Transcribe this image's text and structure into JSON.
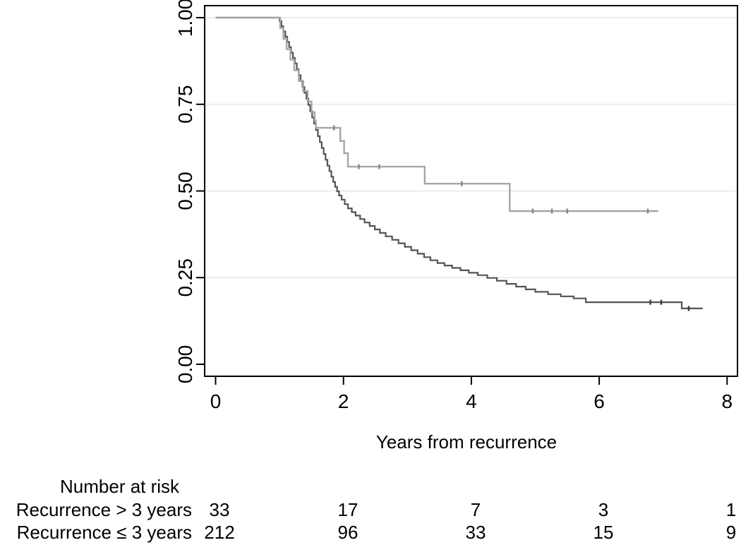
{
  "chart_data": {
    "type": "line",
    "subtype": "kaplan_meier_step_survival",
    "title": "",
    "xlabel": "Years from recurrence",
    "ylabel": "",
    "xlim": [
      0,
      8
    ],
    "ylim": [
      0.0,
      1.0
    ],
    "grid": {
      "show": true,
      "at_values": [
        1.0,
        0.75,
        0.5,
        0.25
      ],
      "color": "#e7e7e7"
    },
    "legend": {
      "show": false
    },
    "frame_color": "#000000",
    "xticks": [
      {
        "value": 0,
        "label": "0"
      },
      {
        "value": 2,
        "label": "2"
      },
      {
        "value": 4,
        "label": "4"
      },
      {
        "value": 6,
        "label": "6"
      },
      {
        "value": 8,
        "label": "8"
      }
    ],
    "yticks": [
      {
        "value": 1.0,
        "label": "1.00"
      },
      {
        "value": 0.75,
        "label": "0.75"
      },
      {
        "value": 0.5,
        "label": "0.50"
      },
      {
        "value": 0.25,
        "label": "0.25"
      },
      {
        "value": 0.0,
        "label": "0.00"
      }
    ],
    "series": [
      {
        "name": "Recurrence ≤ 3 years",
        "color": "#545454",
        "censor_color": "#3d3d3d",
        "line_width": 2.2,
        "end_x": 7.62,
        "steps": [
          [
            0,
            1.0
          ],
          [
            1.0,
            0.99
          ],
          [
            1.03,
            0.975
          ],
          [
            1.06,
            0.96
          ],
          [
            1.09,
            0.945
          ],
          [
            1.12,
            0.93
          ],
          [
            1.15,
            0.915
          ],
          [
            1.18,
            0.899
          ],
          [
            1.21,
            0.884
          ],
          [
            1.24,
            0.868
          ],
          [
            1.27,
            0.851
          ],
          [
            1.3,
            0.834
          ],
          [
            1.33,
            0.817
          ],
          [
            1.36,
            0.8
          ],
          [
            1.39,
            0.783
          ],
          [
            1.42,
            0.766
          ],
          [
            1.45,
            0.748
          ],
          [
            1.48,
            0.73
          ],
          [
            1.51,
            0.712
          ],
          [
            1.54,
            0.694
          ],
          [
            1.57,
            0.676
          ],
          [
            1.6,
            0.658
          ],
          [
            1.63,
            0.641
          ],
          [
            1.66,
            0.624
          ],
          [
            1.69,
            0.607
          ],
          [
            1.72,
            0.59
          ],
          [
            1.75,
            0.573
          ],
          [
            1.78,
            0.557
          ],
          [
            1.81,
            0.541
          ],
          [
            1.84,
            0.526
          ],
          [
            1.87,
            0.512
          ],
          [
            1.9,
            0.499
          ],
          [
            1.93,
            0.487
          ],
          [
            1.97,
            0.475
          ],
          [
            2.02,
            0.462
          ],
          [
            2.07,
            0.45
          ],
          [
            2.13,
            0.439
          ],
          [
            2.19,
            0.429
          ],
          [
            2.26,
            0.419
          ],
          [
            2.33,
            0.409
          ],
          [
            2.41,
            0.399
          ],
          [
            2.49,
            0.389
          ],
          [
            2.57,
            0.379
          ],
          [
            2.66,
            0.369
          ],
          [
            2.76,
            0.359
          ],
          [
            2.86,
            0.349
          ],
          [
            2.96,
            0.339
          ],
          [
            3.06,
            0.329
          ],
          [
            3.16,
            0.319
          ],
          [
            3.26,
            0.309
          ],
          [
            3.36,
            0.3
          ],
          [
            3.47,
            0.292
          ],
          [
            3.58,
            0.285
          ],
          [
            3.7,
            0.278
          ],
          [
            3.83,
            0.271
          ],
          [
            3.96,
            0.264
          ],
          [
            4.1,
            0.257
          ],
          [
            4.25,
            0.249
          ],
          [
            4.4,
            0.241
          ],
          [
            4.55,
            0.232
          ],
          [
            4.7,
            0.224
          ],
          [
            4.85,
            0.216
          ],
          [
            5.0,
            0.209
          ],
          [
            5.2,
            0.202
          ],
          [
            5.4,
            0.196
          ],
          [
            5.6,
            0.19
          ],
          [
            5.79,
            0.179
          ],
          [
            7.29,
            0.161
          ]
        ],
        "censor_marks": [
          [
            6.8,
            0.179
          ],
          [
            6.97,
            0.179
          ],
          [
            7.4,
            0.161
          ]
        ]
      },
      {
        "name": "Recurrence > 3 years",
        "color": "#a5a5a5",
        "censor_color": "#898989",
        "line_width": 2.4,
        "end_x": 6.92,
        "steps": [
          [
            0,
            1.0
          ],
          [
            1.01,
            0.97
          ],
          [
            1.06,
            0.939
          ],
          [
            1.11,
            0.909
          ],
          [
            1.17,
            0.879
          ],
          [
            1.23,
            0.848
          ],
          [
            1.3,
            0.818
          ],
          [
            1.37,
            0.788
          ],
          [
            1.44,
            0.758
          ],
          [
            1.5,
            0.727
          ],
          [
            1.55,
            0.703
          ],
          [
            1.57,
            0.682
          ],
          [
            1.95,
            0.644
          ],
          [
            2.01,
            0.609
          ],
          [
            2.07,
            0.57
          ],
          [
            3.27,
            0.521
          ],
          [
            4.6,
            0.442
          ]
        ],
        "censor_marks": [
          [
            1.85,
            0.682
          ],
          [
            2.24,
            0.57
          ],
          [
            2.56,
            0.57
          ],
          [
            3.85,
            0.521
          ],
          [
            4.96,
            0.442
          ],
          [
            5.26,
            0.442
          ],
          [
            5.5,
            0.442
          ],
          [
            6.76,
            0.442
          ]
        ]
      }
    ]
  },
  "risk_table": {
    "title": "Number at risk",
    "time_points": [
      0,
      2,
      4,
      6,
      8
    ],
    "rows": [
      {
        "label": "Recurrence > 3 years",
        "counts": [
          "33",
          "17",
          "7",
          "3",
          "1"
        ]
      },
      {
        "label": "Recurrence ≤ 3 years",
        "counts": [
          "212",
          "96",
          "33",
          "15",
          "9"
        ]
      }
    ]
  }
}
